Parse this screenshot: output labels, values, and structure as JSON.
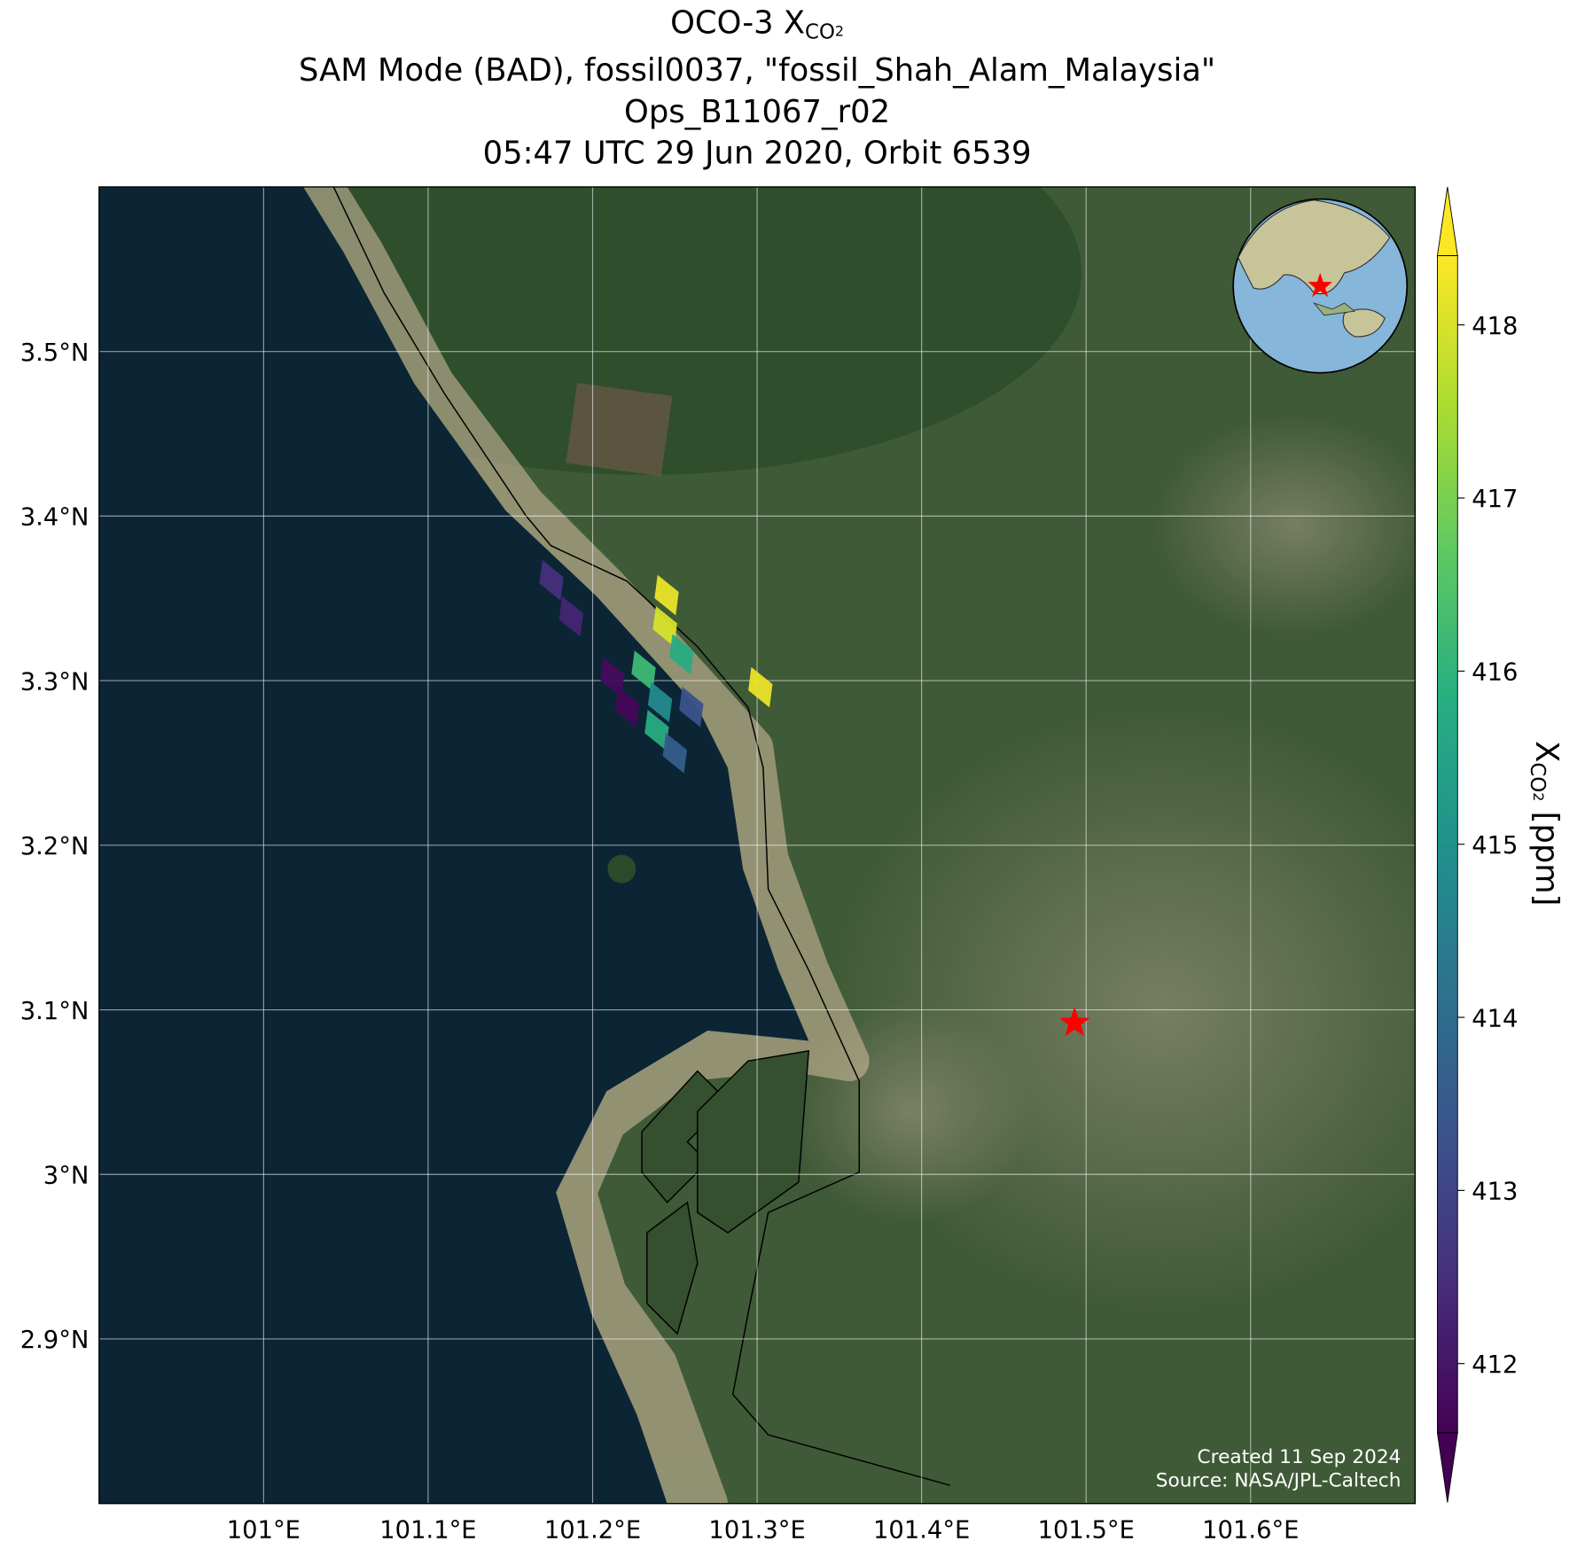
{
  "chart_data": {
    "type": "map",
    "title_first": {
      "prefix": "OCO-3 X",
      "sub": "CO",
      "subsub": "2"
    },
    "title_lines": [
      "SAM Mode (BAD), fossil0037, \"fossil_Shah_Alam_Malaysia\"",
      "Ops_B11067_r02",
      "05:47 UTC 29 Jun 2020, Orbit 6539"
    ],
    "xlim": [
      100.9,
      101.7
    ],
    "ylim": [
      2.8,
      3.6
    ],
    "xticks": [
      {
        "value": 101,
        "label": "101°E"
      },
      {
        "value": 101.1,
        "label": "101.1°E"
      },
      {
        "value": 101.2,
        "label": "101.2°E"
      },
      {
        "value": 101.3,
        "label": "101.3°E"
      },
      {
        "value": 101.4,
        "label": "101.4°E"
      },
      {
        "value": 101.5,
        "label": "101.5°E"
      },
      {
        "value": 101.6,
        "label": "101.6°E"
      }
    ],
    "yticks": [
      {
        "value": 2.9,
        "label": "2.9°N"
      },
      {
        "value": 3,
        "label": "3°N"
      },
      {
        "value": 3.1,
        "label": "3.1°N"
      },
      {
        "value": 3.2,
        "label": "3.2°N"
      },
      {
        "value": 3.3,
        "label": "3.3°N"
      },
      {
        "value": 3.4,
        "label": "3.4°N"
      },
      {
        "value": 3.5,
        "label": "3.5°N"
      }
    ],
    "grid": true,
    "colorbar": {
      "label": {
        "prefix": "X",
        "sub": "CO",
        "subsub": "2",
        "suffix": " [ppm]"
      },
      "clim": [
        411.6,
        418.4
      ],
      "ticks": [
        412,
        413,
        414,
        415,
        416,
        417,
        418
      ],
      "colormap": "viridis",
      "extend": "both"
    },
    "soundings": {
      "lon": [
        101.175,
        101.187,
        101.245,
        101.244,
        101.254,
        101.302,
        101.212,
        101.221,
        101.231,
        101.241,
        101.26,
        101.239,
        101.25
      ],
      "lat": [
        3.361,
        3.339,
        3.352,
        3.333,
        3.316,
        3.296,
        3.302,
        3.284,
        3.306,
        3.287,
        3.284,
        3.27,
        3.256
      ],
      "values": [
        412.5,
        412.3,
        418.2,
        418.0,
        415.8,
        418.2,
        411.8,
        411.7,
        416.2,
        414.8,
        413.3,
        415.8,
        413.6
      ]
    },
    "target": {
      "lon": 101.493,
      "lat": 3.092,
      "color": "#ff0000"
    },
    "credits": [
      "Created 11 Sep 2024",
      "Source: NASA/JPL-Caltech"
    ]
  }
}
